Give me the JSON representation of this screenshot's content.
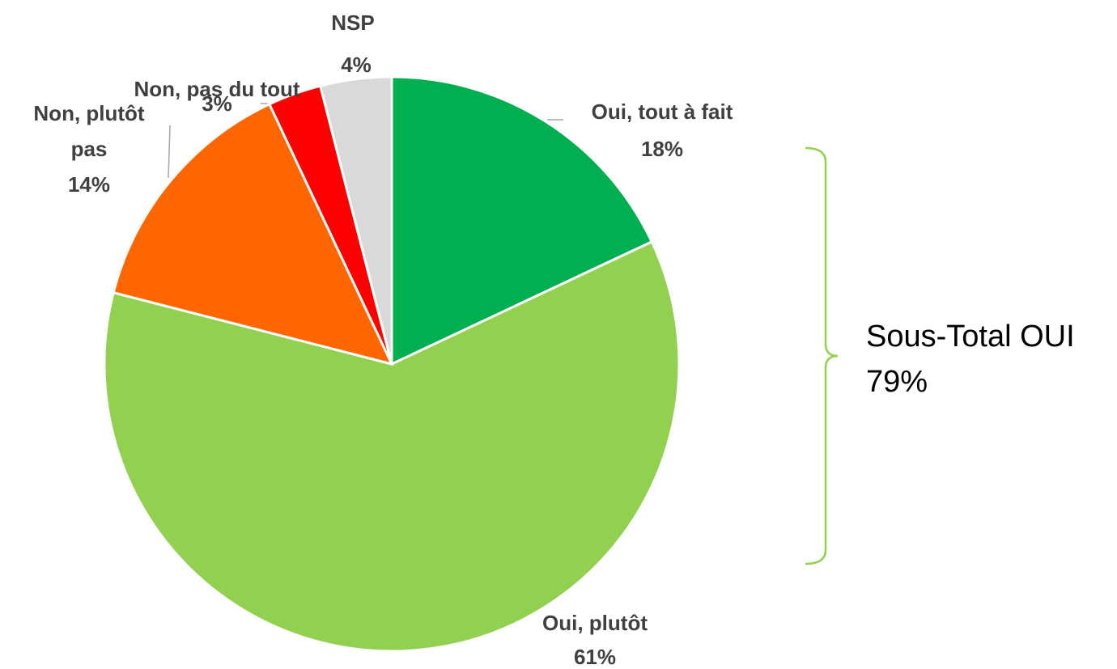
{
  "chart_data": {
    "type": "pie",
    "categories": [
      "Oui, tout à fait",
      "Oui, plutôt",
      "Non, plutôt pas",
      "Non, pas du tout",
      "NSP"
    ],
    "values": [
      18,
      61,
      14,
      3,
      4
    ],
    "value_labels": [
      "18%",
      "61%",
      "14%",
      "3%",
      "4%"
    ],
    "colors": [
      "#00b050",
      "#92d050",
      "#ff6600",
      "#ff0000",
      "#d9d9d9"
    ],
    "annotation": {
      "text": "Sous-Total OUI",
      "value": 79,
      "value_label": "79%"
    }
  }
}
